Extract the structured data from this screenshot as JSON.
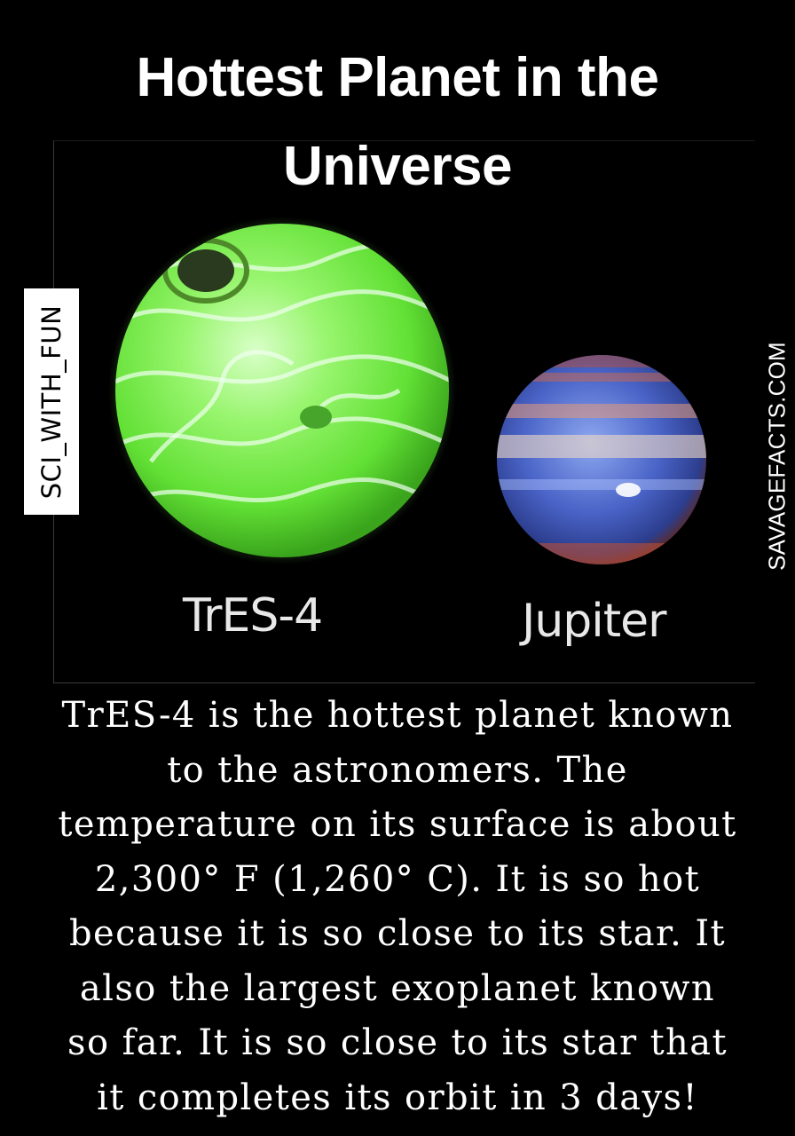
{
  "title": {
    "line1": "Hottest Planet in the",
    "line2": "Universe"
  },
  "planets": {
    "tres4_label": "TrES-4",
    "jupiter_label": "Jupiter",
    "tres4_color": "#7cf05a",
    "jupiter_color": "#4a64c8"
  },
  "watermarks": {
    "left": "SCI_WITH_FUN",
    "right": "SAVAGEFACTS.COM"
  },
  "description": {
    "lines": [
      "TrES-4 is the hottest planet known",
      "to the astronomers. The",
      "temperature on its surface is about",
      "2,300° F (1,260° C). It is so hot",
      "because it is so close to its star. It",
      "also the largest exoplanet known",
      "so far. It is so close to its star that",
      "it completes its orbit in 3 days!"
    ]
  }
}
